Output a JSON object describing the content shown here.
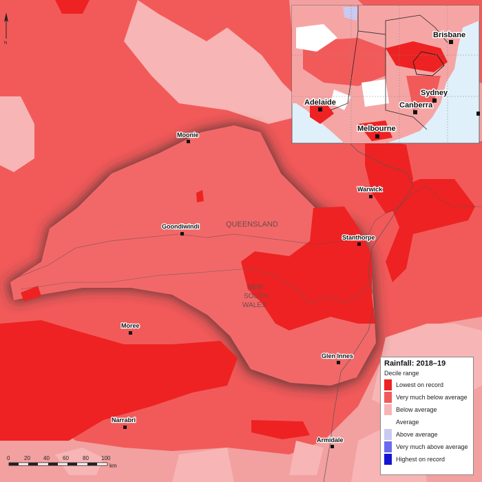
{
  "towns": [
    {
      "name": "Moonie",
      "key": "moonie"
    },
    {
      "name": "Warwick",
      "key": "warwick"
    },
    {
      "name": "Goondiwindi",
      "key": "goondiwindi"
    },
    {
      "name": "Stanthorpe",
      "key": "stanthorpe"
    },
    {
      "name": "Moree",
      "key": "moree"
    },
    {
      "name": "Glen Innes",
      "key": "glen-innes"
    },
    {
      "name": "Narrabri",
      "key": "narrabri"
    },
    {
      "name": "Armidale",
      "key": "armidale"
    }
  ],
  "regions": {
    "qld": "QUEENSLAND",
    "nsw_line1": "NEW",
    "nsw_line2": "SOUTH",
    "nsw_line3": "WALES"
  },
  "inset": {
    "cities": [
      "Brisbane",
      "Sydney",
      "Adelaide",
      "Canberra",
      "Melbourne"
    ]
  },
  "legend": {
    "title": "Rainfall: 2018–19",
    "subtitle": "Decile range",
    "items": [
      {
        "label": "Lowest on record",
        "color": "#ee2222"
      },
      {
        "label": "Very much below average",
        "color": "#f25a5a"
      },
      {
        "label": "Below average",
        "color": "#f7b5b5"
      },
      {
        "label": "Average",
        "color": "#ffffff"
      },
      {
        "label": "Above average",
        "color": "#c9c9f2"
      },
      {
        "label": "Very much above average",
        "color": "#6a6af0"
      },
      {
        "label": "Highest on record",
        "color": "#1414d6"
      }
    ]
  },
  "scale": {
    "ticks": [
      "0",
      "20",
      "40",
      "60",
      "80",
      "100"
    ],
    "unit": "km"
  },
  "north_label": "N"
}
